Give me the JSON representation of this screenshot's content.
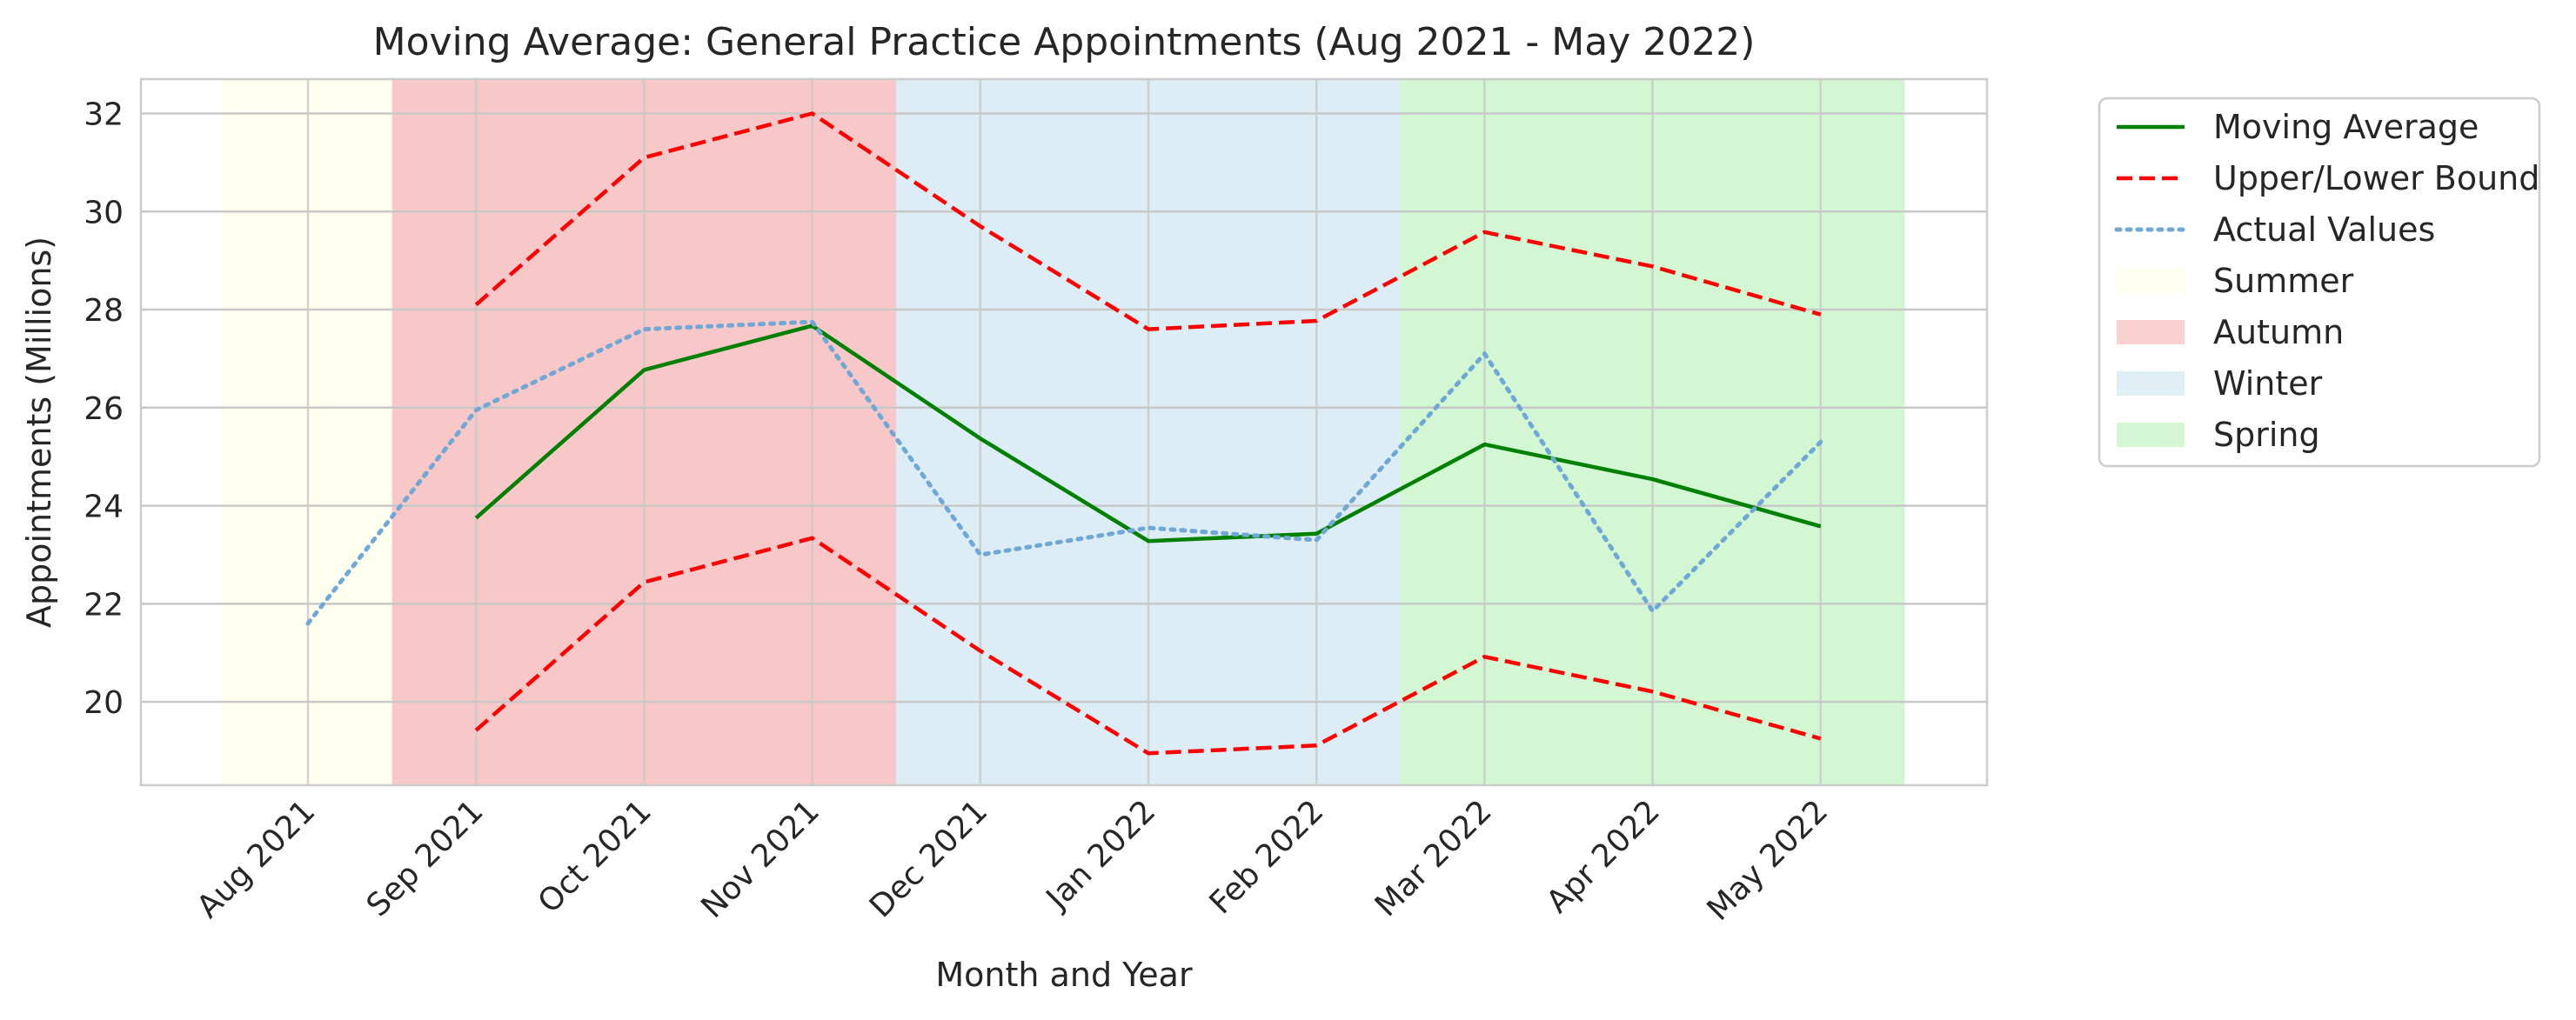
{
  "chart_data": {
    "type": "line",
    "title": "Moving Average: General Practice Appointments (Aug 2021 - May 2022)",
    "xlabel": "Month and Year",
    "ylabel": "Appointments (Millions)",
    "categories": [
      "Aug 2021",
      "Sep 2021",
      "Oct 2021",
      "Nov 2021",
      "Dec 2021",
      "Jan 2022",
      "Feb 2022",
      "Mar 2022",
      "Apr 2022",
      "May 2022"
    ],
    "ylim": [
      18.3,
      32.7
    ],
    "yticks": [
      20,
      22,
      24,
      26,
      28,
      30,
      32
    ],
    "grid": true,
    "legend_position": "outside top-right",
    "series": [
      {
        "name": "Moving Average",
        "style": "solid",
        "color": "#008000",
        "values": [
          null,
          23.75,
          26.77,
          27.67,
          25.37,
          23.28,
          23.43,
          25.25,
          24.54,
          23.58
        ]
      },
      {
        "name": "Upper/Lower Bound",
        "style": "dashed",
        "color": "#ff0000",
        "values": [
          null,
          28.1,
          31.1,
          32.0,
          29.7,
          27.6,
          27.77,
          29.58,
          28.88,
          27.9
        ]
      },
      {
        "name": "",
        "style": "dashed",
        "color": "#ff0000",
        "values": [
          null,
          19.42,
          22.44,
          23.34,
          21.04,
          18.95,
          19.11,
          20.92,
          20.21,
          19.25
        ]
      },
      {
        "name": "Actual Values",
        "style": "dotted",
        "color": "#6fa8d6",
        "values": [
          21.6,
          25.95,
          27.6,
          27.75,
          23.0,
          23.55,
          23.3,
          27.1,
          21.85,
          25.3
        ]
      }
    ],
    "seasons": [
      {
        "name": "Summer",
        "color": "#fffff0",
        "legend_color": "#fffff0",
        "from": -0.5,
        "to": 0.5
      },
      {
        "name": "Autumn",
        "color": "#f8c8c8",
        "legend_color": "#f9d1d1",
        "from": 0.5,
        "to": 3.5
      },
      {
        "name": "Winter",
        "color": "#dcedf5",
        "legend_color": "#e0eef6",
        "from": 3.5,
        "to": 6.5
      },
      {
        "name": "Spring",
        "color": "#d2f7d2",
        "legend_color": "#d4f8d4",
        "from": 6.5,
        "to": 9.5
      }
    ]
  },
  "colors": {
    "grid": "#c8c8c8",
    "axes_edge": "#cccccc",
    "text": "#262626"
  }
}
